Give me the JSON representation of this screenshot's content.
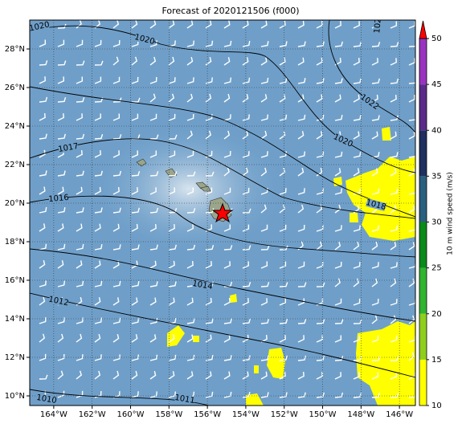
{
  "chart_data": {
    "type": "map",
    "title": "Forecast of 2020121506 (f000)",
    "xlim": [
      -165.25,
      -145.17
    ],
    "ylim": [
      9.5,
      29.5
    ],
    "xticks": [
      {
        "value": -164,
        "label": "164°W"
      },
      {
        "value": -162,
        "label": "162°W"
      },
      {
        "value": -160,
        "label": "160°W"
      },
      {
        "value": -158,
        "label": "158°W"
      },
      {
        "value": -156,
        "label": "156°W"
      },
      {
        "value": -154,
        "label": "154°W"
      },
      {
        "value": -152,
        "label": "152°W"
      },
      {
        "value": -150,
        "label": "150°W"
      },
      {
        "value": -148,
        "label": "148°W"
      },
      {
        "value": -146,
        "label": "146°W"
      }
    ],
    "yticks": [
      {
        "value": 10,
        "label": "10°N"
      },
      {
        "value": 12,
        "label": "12°N"
      },
      {
        "value": 14,
        "label": "14°N"
      },
      {
        "value": 16,
        "label": "16°N"
      },
      {
        "value": 18,
        "label": "18°N"
      },
      {
        "value": 20,
        "label": "20°N"
      },
      {
        "value": 22,
        "label": "22°N"
      },
      {
        "value": 24,
        "label": "24°N"
      },
      {
        "value": 26,
        "label": "26°N"
      },
      {
        "value": 28,
        "label": "28°N"
      }
    ],
    "grid": true,
    "colorbar": {
      "label": "10 m wind speed (m/s)",
      "lim": [
        10,
        50
      ],
      "ticks": [
        10,
        15,
        20,
        25,
        30,
        35,
        40,
        45,
        50
      ],
      "colors": [
        "#ffff00",
        "#8fce1e",
        "#2fb52f",
        "#0a8a1a",
        "#2a5f7f",
        "#1f2f5f",
        "#5a2a8a",
        "#9a32c0"
      ],
      "extend_color": "#ff0000"
    },
    "contour_labels": [
      "1010",
      "1011",
      "1012",
      "1014",
      "1016",
      "1017",
      "1018",
      "1020",
      "1020",
      "1020",
      "1022",
      "102"
    ]
  }
}
